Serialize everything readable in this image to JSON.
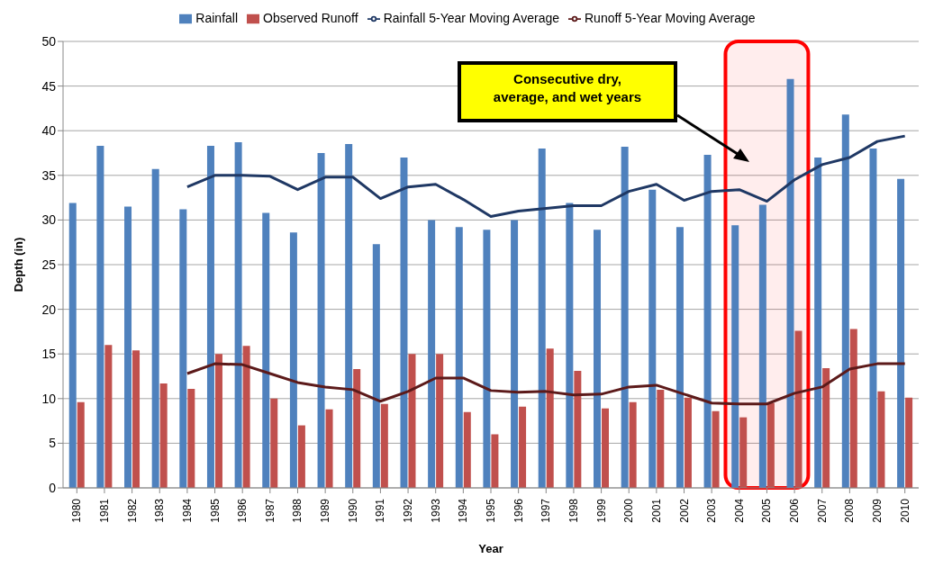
{
  "chart_data": {
    "type": "bar",
    "xlabel": "Year",
    "ylabel": "Depth (in)",
    "categories": [
      "1980",
      "1981",
      "1982",
      "1983",
      "1984",
      "1985",
      "1986",
      "1987",
      "1988",
      "1989",
      "1990",
      "1991",
      "1992",
      "1993",
      "1994",
      "1995",
      "1996",
      "1997",
      "1998",
      "1999",
      "2000",
      "2001",
      "2002",
      "2003",
      "2004",
      "2005",
      "2006",
      "2007",
      "2008",
      "2009",
      "2010"
    ],
    "series": [
      {
        "name": "Rainfall",
        "color": "#4f81bd",
        "values": [
          31.9,
          38.3,
          31.5,
          35.7,
          31.2,
          38.3,
          38.7,
          30.8,
          28.6,
          37.5,
          38.5,
          27.3,
          37.0,
          30.0,
          29.2,
          28.9,
          30.0,
          38.0,
          31.9,
          28.9,
          38.2,
          33.4,
          29.2,
          37.3,
          29.4,
          31.7,
          45.8,
          37.0,
          41.8,
          38.0,
          34.6
        ]
      },
      {
        "name": "Observed Runoff",
        "color": "#c0504d",
        "values": [
          9.6,
          16.0,
          15.4,
          11.7,
          11.1,
          15.0,
          15.9,
          10.0,
          7.0,
          8.8,
          13.3,
          9.4,
          15.0,
          15.0,
          8.5,
          6.0,
          9.1,
          15.6,
          13.1,
          8.9,
          9.6,
          11.0,
          10.1,
          8.6,
          7.9,
          9.5,
          17.6,
          13.4,
          17.8,
          10.8,
          10.1
        ]
      },
      {
        "name": "Rainfall 5-Year Moving Average",
        "type": "line",
        "color": "#1f3864",
        "values": [
          null,
          null,
          null,
          null,
          33.7,
          35.0,
          35.0,
          34.9,
          33.4,
          34.8,
          34.8,
          32.4,
          33.7,
          34.0,
          32.3,
          30.4,
          31.0,
          31.3,
          31.6,
          31.6,
          33.2,
          34.0,
          32.2,
          33.2,
          33.4,
          32.1,
          34.5,
          36.2,
          37.0,
          38.8,
          39.4
        ]
      },
      {
        "name": "Runoff 5-Year Moving Average",
        "type": "line",
        "color": "#5c1a1a",
        "values": [
          null,
          null,
          null,
          null,
          12.8,
          13.9,
          13.8,
          12.8,
          11.8,
          11.3,
          11.0,
          9.7,
          10.8,
          12.3,
          12.3,
          10.9,
          10.7,
          10.8,
          10.4,
          10.5,
          11.3,
          11.5,
          10.5,
          9.5,
          9.4,
          9.4,
          10.6,
          11.3,
          13.3,
          13.9,
          13.9
        ]
      }
    ],
    "ylim": [
      0,
      50
    ],
    "yticks": [
      0,
      5,
      10,
      15,
      20,
      25,
      30,
      35,
      40,
      45,
      50
    ],
    "grid": "y",
    "legend": "top",
    "marker": "none",
    "bands": [
      {
        "axis": "x",
        "from": "2004",
        "to": "2006",
        "color": "#ff0000"
      }
    ],
    "annotations": [
      "Consecutive dry, average, and wet years"
    ]
  }
}
